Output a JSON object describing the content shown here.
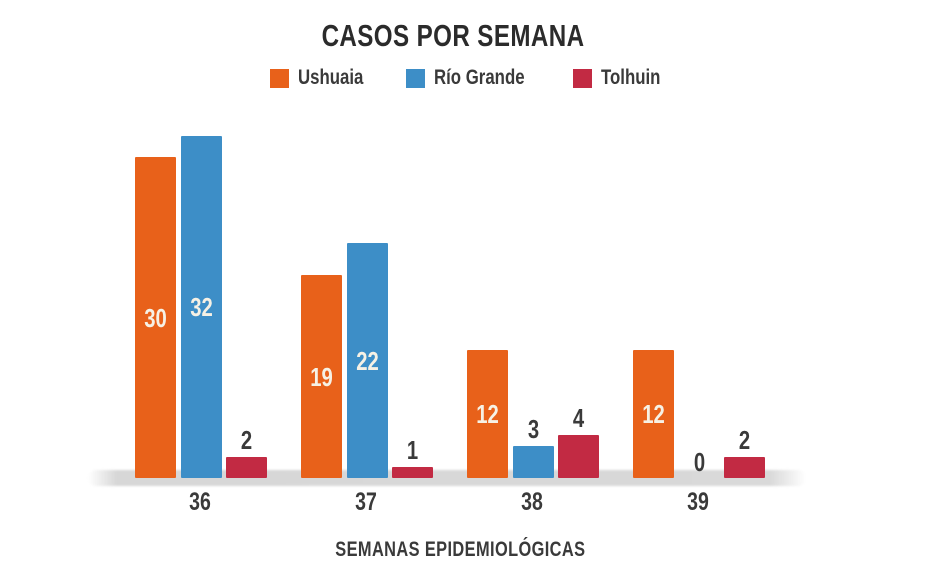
{
  "title": "CASOS POR SEMANA",
  "chart_data": {
    "type": "bar",
    "title": "CASOS POR SEMANA",
    "categories": [
      "36",
      "37",
      "38",
      "39"
    ],
    "series": [
      {
        "name": "Ushuaia",
        "color": "#E8611A",
        "values": [
          30,
          19,
          12,
          12
        ]
      },
      {
        "name": "Río Grande",
        "color": "#3D8EC7",
        "values": [
          32,
          22,
          3,
          0
        ]
      },
      {
        "name": "Tolhuin",
        "color": "#C22A43",
        "values": [
          2,
          1,
          4,
          2
        ]
      }
    ],
    "xlabel": "SEMANAS EPIDEMIOLÓGICAS",
    "ylabel": "",
    "ylim": [
      0,
      34
    ],
    "grid": false,
    "legend_position": "top",
    "value_labels": true,
    "value_label_colors": {
      "inside": "#F6F1E5",
      "above": "#3A3A3A"
    },
    "baseline_color": "#D9D9D9",
    "text_color": "#3A3A3A"
  }
}
